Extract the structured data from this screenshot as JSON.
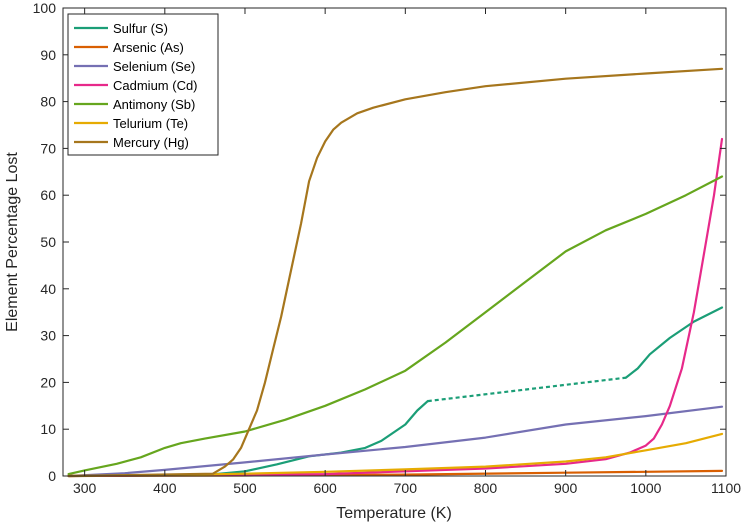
{
  "chart_data": {
    "type": "line",
    "title": "",
    "xlabel": "Temperature (K)",
    "ylabel": "Element Percentage Lost",
    "xlim": [
      273,
      1100
    ],
    "ylim": [
      0,
      100
    ],
    "xticks": [
      300,
      400,
      500,
      600,
      700,
      800,
      900,
      1000,
      1100
    ],
    "yticks": [
      0,
      10,
      20,
      30,
      40,
      50,
      60,
      70,
      80,
      90,
      100
    ],
    "grid": false,
    "legend_position": "top-left",
    "series": [
      {
        "name": "Sulfur (S)",
        "color": "#1b9e77",
        "points": [
          [
            280,
            0
          ],
          [
            450,
            0.2
          ],
          [
            500,
            1
          ],
          [
            540,
            2.5
          ],
          [
            580,
            4.2
          ],
          [
            620,
            5
          ],
          [
            650,
            6
          ],
          [
            670,
            7.5
          ],
          [
            700,
            11
          ],
          [
            715,
            14
          ],
          [
            728,
            16
          ]
        ],
        "dashed_points": [
          [
            728,
            16
          ],
          [
            975,
            21
          ]
        ],
        "points_after": [
          [
            975,
            21
          ],
          [
            990,
            23
          ],
          [
            1005,
            26
          ],
          [
            1030,
            29.5
          ],
          [
            1060,
            33
          ],
          [
            1095,
            36
          ]
        ]
      },
      {
        "name": "Arsenic (As)",
        "color": "#d95f02",
        "points": [
          [
            280,
            0
          ],
          [
            500,
            0.1
          ],
          [
            700,
            0.3
          ],
          [
            900,
            0.7
          ],
          [
            1000,
            0.9
          ],
          [
            1095,
            1.1
          ]
        ]
      },
      {
        "name": "Selenium (Se)",
        "color": "#7570b3",
        "points": [
          [
            280,
            0
          ],
          [
            350,
            0.6
          ],
          [
            400,
            1.3
          ],
          [
            500,
            2.9
          ],
          [
            600,
            4.6
          ],
          [
            700,
            6.2
          ],
          [
            800,
            8.2
          ],
          [
            900,
            11
          ],
          [
            1000,
            12.8
          ],
          [
            1095,
            14.8
          ]
        ]
      },
      {
        "name": "Cadmium (Cd)",
        "color": "#e7298a",
        "points": [
          [
            280,
            0
          ],
          [
            600,
            0.4
          ],
          [
            800,
            1.6
          ],
          [
            900,
            2.6
          ],
          [
            950,
            3.6
          ],
          [
            980,
            5
          ],
          [
            1000,
            6.5
          ],
          [
            1010,
            8
          ],
          [
            1020,
            11
          ],
          [
            1030,
            15
          ],
          [
            1045,
            23
          ],
          [
            1060,
            35
          ],
          [
            1075,
            50
          ],
          [
            1085,
            60
          ],
          [
            1095,
            72
          ]
        ]
      },
      {
        "name": "Antimony (Sb)",
        "color": "#66a61e",
        "points": [
          [
            280,
            0.4
          ],
          [
            300,
            1.2
          ],
          [
            340,
            2.6
          ],
          [
            370,
            4
          ],
          [
            400,
            6
          ],
          [
            420,
            7
          ],
          [
            450,
            8
          ],
          [
            500,
            9.5
          ],
          [
            550,
            12
          ],
          [
            600,
            15
          ],
          [
            650,
            18.5
          ],
          [
            700,
            22.5
          ],
          [
            750,
            28.5
          ],
          [
            800,
            35
          ],
          [
            850,
            41.5
          ],
          [
            900,
            48
          ],
          [
            950,
            52.5
          ],
          [
            1000,
            56
          ],
          [
            1050,
            60
          ],
          [
            1095,
            64
          ]
        ]
      },
      {
        "name": "Telurium (Te)",
        "color": "#e6ab02",
        "points": [
          [
            280,
            0
          ],
          [
            400,
            0.2
          ],
          [
            500,
            0.5
          ],
          [
            600,
            0.9
          ],
          [
            700,
            1.4
          ],
          [
            800,
            2
          ],
          [
            900,
            3.1
          ],
          [
            950,
            4
          ],
          [
            1000,
            5.5
          ],
          [
            1050,
            7
          ],
          [
            1095,
            9
          ]
        ]
      },
      {
        "name": "Mercury (Hg)",
        "color": "#a6761d",
        "points": [
          [
            280,
            0
          ],
          [
            460,
            0.5
          ],
          [
            475,
            2
          ],
          [
            485,
            3.5
          ],
          [
            495,
            6
          ],
          [
            505,
            10
          ],
          [
            515,
            14
          ],
          [
            525,
            20
          ],
          [
            535,
            27
          ],
          [
            545,
            34
          ],
          [
            555,
            42
          ],
          [
            570,
            54
          ],
          [
            580,
            63
          ],
          [
            590,
            68
          ],
          [
            600,
            71.5
          ],
          [
            610,
            74
          ],
          [
            620,
            75.5
          ],
          [
            640,
            77.5
          ],
          [
            660,
            78.7
          ],
          [
            700,
            80.5
          ],
          [
            750,
            82
          ],
          [
            800,
            83.3
          ],
          [
            900,
            84.9
          ],
          [
            1000,
            86
          ],
          [
            1095,
            87
          ]
        ]
      }
    ]
  }
}
